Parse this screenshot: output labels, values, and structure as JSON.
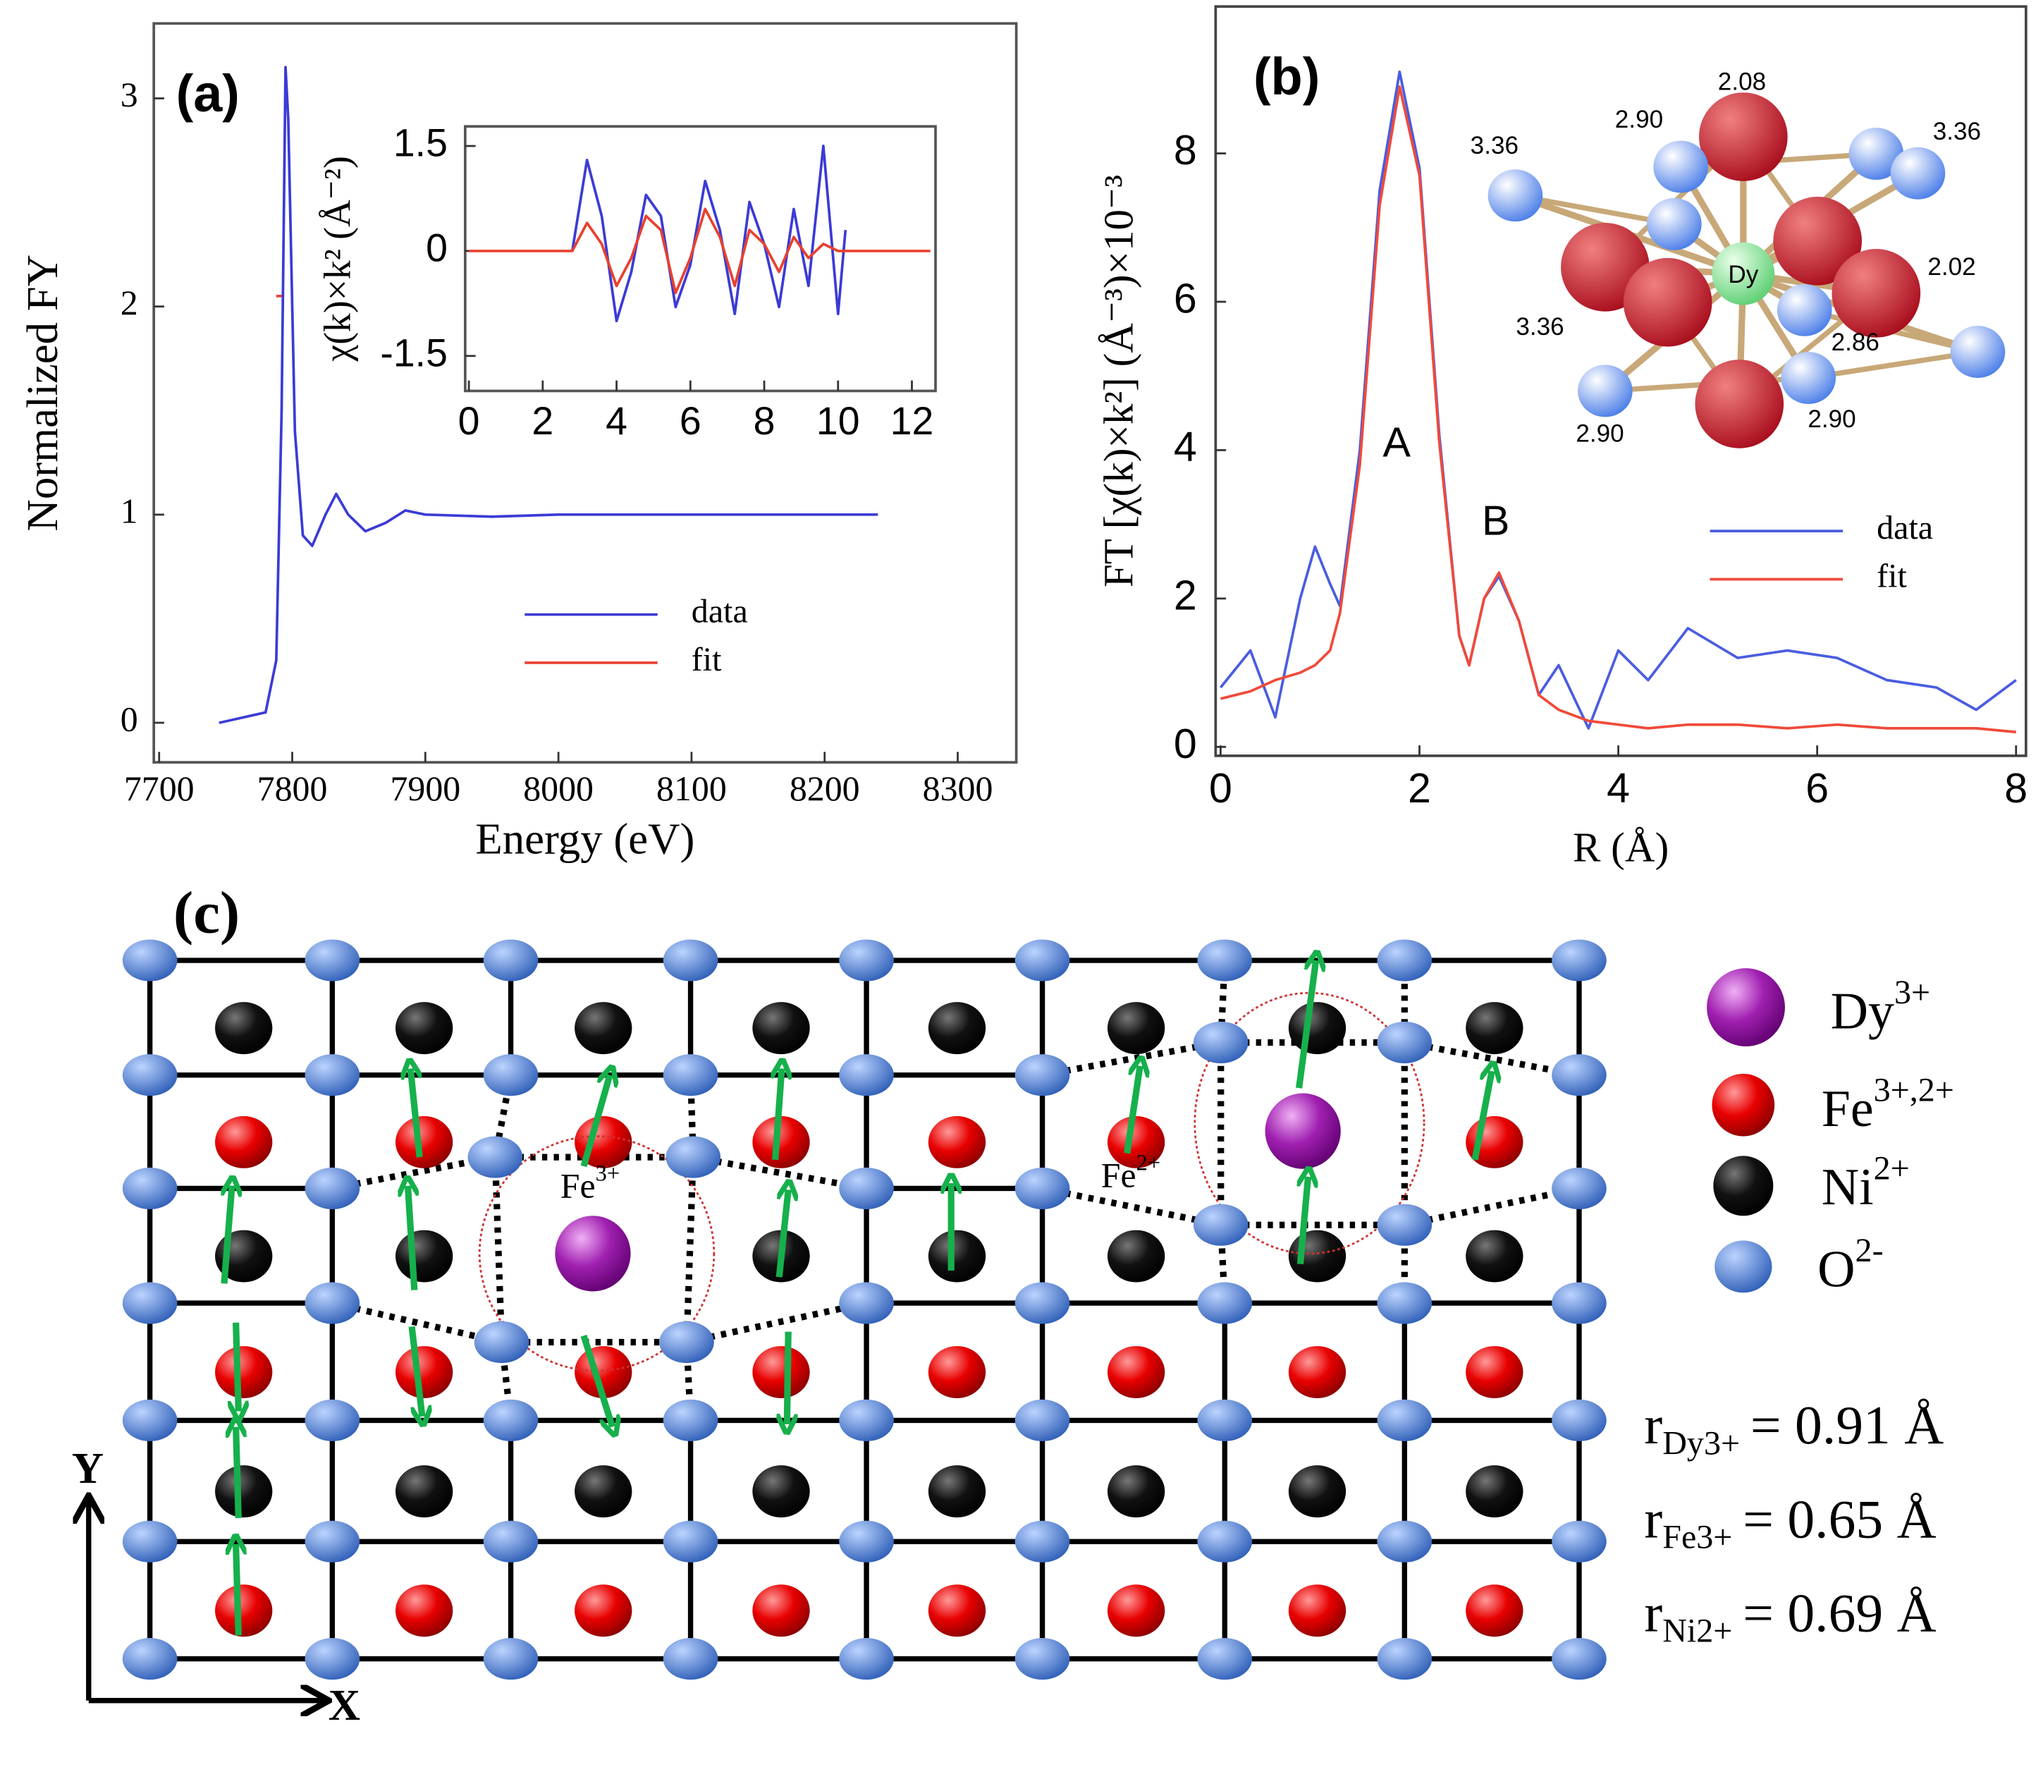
{
  "chart_data": [
    {
      "type": "line",
      "title": "(a)",
      "xlabel": "Energy (eV)",
      "ylabel": "Normalized FY",
      "x": [
        7745,
        7780,
        7788,
        7792,
        7795,
        7797,
        7802,
        7808,
        7815,
        7825,
        7833,
        7842,
        7855,
        7870,
        7885,
        7900,
        7950,
        8000,
        8100,
        8240
      ],
      "series": [
        {
          "name": "data",
          "color": "#3b3bd6",
          "values": [
            0,
            0.05,
            0.3,
            1.5,
            3.15,
            2.9,
            1.4,
            0.9,
            0.85,
            1.0,
            1.1,
            1.0,
            0.92,
            0.96,
            1.02,
            1.0,
            0.99,
            1.0,
            1.0,
            1.0
          ]
        },
        {
          "name": "fit",
          "color": "#e8402f",
          "values": [
            null,
            null,
            2.05,
            2.05,
            null,
            null,
            null,
            null,
            null,
            null,
            null,
            null,
            null,
            null,
            null,
            null,
            null,
            null,
            null,
            null
          ]
        }
      ],
      "xlim": [
        7696,
        8344
      ],
      "ylim": [
        -0.19,
        3.36
      ],
      "xticks": [
        7700,
        7800,
        7900,
        8000,
        8100,
        8200,
        8300
      ],
      "yticks": [
        0,
        1,
        2,
        3
      ],
      "legend": "lower right"
    },
    {
      "type": "line",
      "ylabel": "χ(k)×k² (Å⁻²)",
      "x": [
        0,
        1,
        2,
        2.8,
        3.2,
        3.6,
        4,
        4.4,
        4.8,
        5.2,
        5.6,
        6,
        6.4,
        6.8,
        7.2,
        7.6,
        8,
        8.4,
        8.8,
        9.2,
        9.6,
        10,
        10.2,
        11,
        12.5
      ],
      "series": [
        {
          "name": "data",
          "color": "#3b3bd6",
          "values": [
            null,
            null,
            null,
            0,
            1.3,
            0.5,
            -1.0,
            -0.3,
            0.8,
            0.5,
            -0.8,
            -0.2,
            1.0,
            0.3,
            -0.9,
            0.7,
            0.1,
            -0.8,
            0.6,
            -0.5,
            1.5,
            -0.9,
            0.3,
            null,
            null
          ]
        },
        {
          "name": "fit",
          "color": "#e8402f",
          "values": [
            0,
            0,
            0,
            0,
            0.4,
            0.1,
            -0.5,
            -0.1,
            0.5,
            0.3,
            -0.6,
            -0.1,
            0.6,
            0.2,
            -0.5,
            0.3,
            0.1,
            -0.3,
            0.2,
            -0.1,
            0.1,
            0,
            0,
            0,
            0
          ]
        }
      ],
      "xlim": [
        -0.1,
        12.64
      ],
      "ylim": [
        -2.0,
        1.78
      ],
      "xticks": [
        0,
        2,
        4,
        6,
        8,
        10,
        12
      ],
      "yticks": [
        -1.5,
        0,
        1.5
      ]
    },
    {
      "type": "line",
      "title": "(b)",
      "xlabel": "R (Å)",
      "ylabel": "FT [χ(k)×k²] (Å⁻³)×10⁻³",
      "annotations": [
        "A",
        "B"
      ],
      "x": [
        0,
        0.3,
        0.55,
        0.8,
        0.95,
        1.1,
        1.2,
        1.4,
        1.6,
        1.8,
        2.0,
        2.2,
        2.4,
        2.5,
        2.65,
        2.8,
        3.0,
        3.2,
        3.4,
        3.7,
        4.0,
        4.3,
        4.7,
        5.2,
        5.7,
        6.2,
        6.7,
        7.2,
        7.6,
        8
      ],
      "series": [
        {
          "name": "data",
          "color": "#4a5de0",
          "values": [
            0.8,
            1.3,
            0.4,
            2.0,
            2.7,
            2.2,
            1.9,
            4.0,
            7.5,
            9.1,
            7.8,
            4.2,
            1.5,
            1.1,
            2.0,
            2.3,
            1.7,
            0.7,
            1.1,
            0.25,
            1.3,
            0.9,
            1.6,
            1.2,
            1.3,
            1.2,
            0.9,
            0.8,
            0.5,
            0.9
          ]
        },
        {
          "name": "fit",
          "color": "#f04a3a",
          "values": [
            0.65,
            0.75,
            0.9,
            1.0,
            1.1,
            1.3,
            1.8,
            3.8,
            7.3,
            8.9,
            7.7,
            4.1,
            1.5,
            1.1,
            2.0,
            2.35,
            1.7,
            0.7,
            0.5,
            0.35,
            0.3,
            0.25,
            0.3,
            0.3,
            0.25,
            0.3,
            0.25,
            0.25,
            0.25,
            0.2
          ]
        }
      ],
      "xlim": [
        -0.05,
        8.1
      ],
      "ylim": [
        -0.12,
        9.98
      ],
      "xticks": [
        0,
        2,
        4,
        6,
        8
      ],
      "yticks": [
        0,
        2,
        4,
        6,
        8
      ],
      "legend": "center right"
    }
  ],
  "structure": {
    "center": "Dy",
    "bond_lengths": [
      "3.36",
      "2.90",
      "2.08",
      "3.36",
      "2.02",
      "3.36",
      "2.86",
      "2.90",
      "2.90"
    ]
  },
  "diagram": {
    "label": "(c)",
    "site_labels": [
      {
        "ion": "Fe",
        "charge": "3+"
      },
      {
        "ion": "Fe",
        "charge": "2+"
      }
    ],
    "legend": [
      {
        "ion": "Dy",
        "charge": "3+"
      },
      {
        "ion": "Fe",
        "charge": "3+,2+"
      },
      {
        "ion": "Ni",
        "charge": "2+"
      },
      {
        "ion": "O",
        "charge": "2-"
      }
    ],
    "radii": [
      {
        "symbol": "r",
        "ion": "Dy3+",
        "value": "= 0.91 Å"
      },
      {
        "symbol": "r",
        "ion": "Fe3+",
        "value": "= 0.65 Å"
      },
      {
        "symbol": "r",
        "ion": "Ni2+",
        "value": "= 0.69 Å"
      }
    ],
    "axes": [
      "X",
      "Y"
    ]
  }
}
